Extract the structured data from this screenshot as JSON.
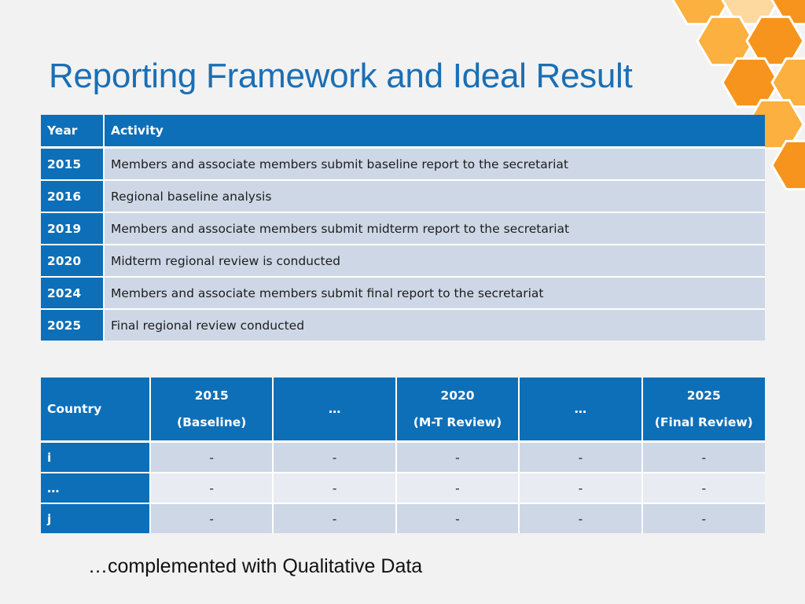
{
  "title": "Reporting Framework and Ideal Result",
  "timeline": {
    "headers": [
      "Year",
      "Activity"
    ],
    "rows": [
      {
        "year": "2015",
        "activity": "Members and associate members submit baseline report to the secretariat"
      },
      {
        "year": "2016",
        "activity": "Regional baseline analysis"
      },
      {
        "year": "2019",
        "activity": "Members and associate members submit midterm report to the secretariat"
      },
      {
        "year": "2020",
        "activity": "Midterm regional review is conducted"
      },
      {
        "year": "2024",
        "activity": "Members and associate members submit final report to the secretariat"
      },
      {
        "year": "2025",
        "activity": "Final regional review conducted"
      }
    ]
  },
  "country_table": {
    "header_country": "Country",
    "columns": [
      {
        "line1": "2015",
        "line2": "(Baseline)"
      },
      {
        "line1": "…",
        "line2": ""
      },
      {
        "line1": "2020",
        "line2": "(M-T Review)"
      },
      {
        "line1": "…",
        "line2": ""
      },
      {
        "line1": "2025",
        "line2": "(Final Review)"
      }
    ],
    "rows": [
      {
        "label": "i",
        "cells": [
          "-",
          "-",
          "-",
          "-",
          "-"
        ]
      },
      {
        "label": "…",
        "cells": [
          "-",
          "-",
          "-",
          "-",
          "-"
        ]
      },
      {
        "label": "j",
        "cells": [
          "-",
          "-",
          "-",
          "-",
          "-"
        ]
      }
    ]
  },
  "footer_note": "…complemented with Qualitative Data",
  "colors": {
    "accent_blue": "#0d6fb8",
    "title_blue": "#1a6fb5",
    "row_dark": "#cdd7e6",
    "row_light": "#e8ebf2",
    "hex_orange": "#f7941d",
    "hex_yellow": "#fbb040",
    "hex_light": "#fdd9a0"
  }
}
